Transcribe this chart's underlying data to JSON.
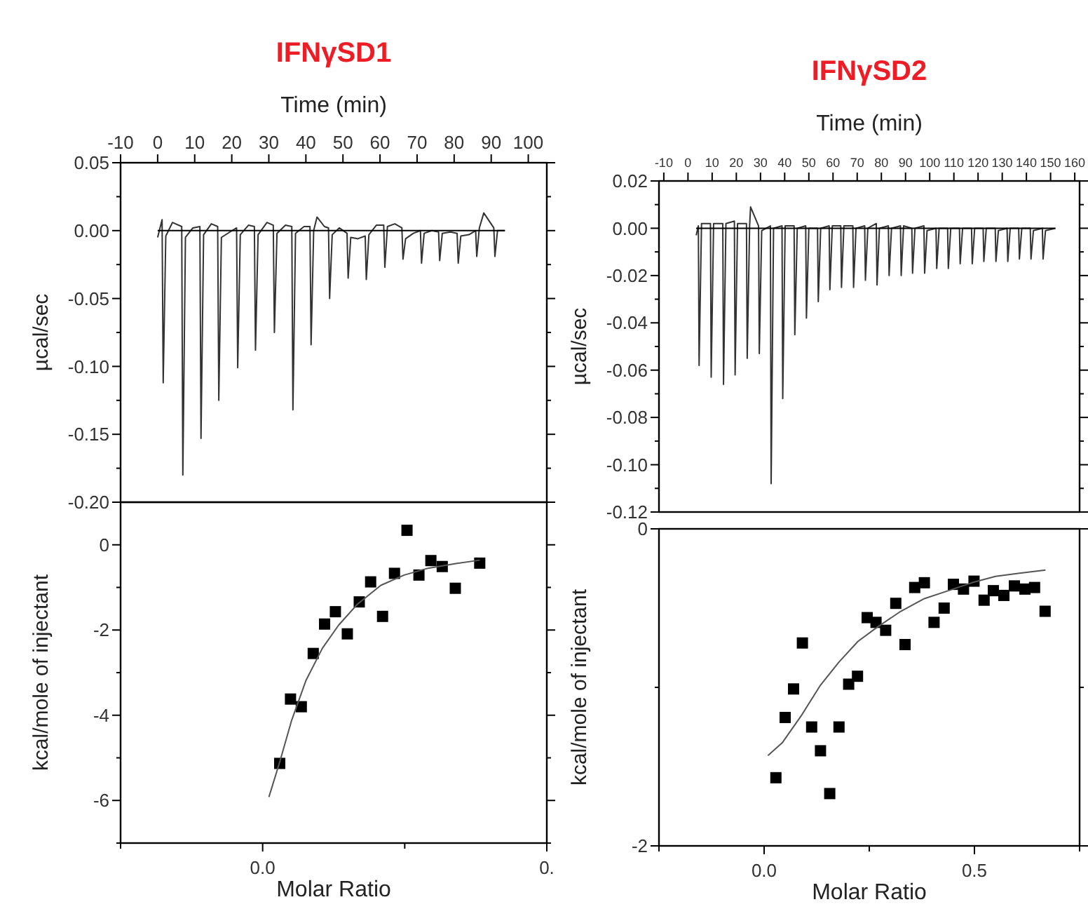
{
  "chart_data": [
    {
      "type": "line",
      "title": "IFNγSD1",
      "xlabel": "Time (min)",
      "ylabel": "µcal/sec",
      "xlim": [
        -10,
        105
      ],
      "xticks": [
        -10,
        0,
        10,
        20,
        30,
        40,
        50,
        60,
        70,
        80,
        90,
        100
      ],
      "ylim": [
        -0.2,
        0.05
      ],
      "yticks": [
        {
          "value": 0.05,
          "label": "0.05"
        },
        {
          "value": 0.025,
          "label": null
        },
        {
          "value": 0,
          "label": "0.00"
        },
        {
          "value": -0.025,
          "label": null
        },
        {
          "value": -0.05,
          "label": "-0.05"
        },
        {
          "value": -0.075,
          "label": null
        },
        {
          "value": -0.1,
          "label": "-0.10"
        },
        {
          "value": -0.125,
          "label": null
        },
        {
          "value": -0.15,
          "label": "-0.15"
        },
        {
          "value": -0.175,
          "label": null
        },
        {
          "value": -0.2,
          "label": "-0.20"
        }
      ],
      "series": [
        {
          "color": "#333333",
          "x": [
            0,
            1.2,
            1.5,
            2.2,
            4,
            6.5,
            6.8,
            7.5,
            9.5,
            11.4,
            11.7,
            12.4,
            14.5,
            16.2,
            16.5,
            17.2,
            19.5,
            21.3,
            21.6,
            22.3,
            24.5,
            26.1,
            26.4,
            27.1,
            29.5,
            31.2,
            31.5,
            32.2,
            34.5,
            36.2,
            36.5,
            37.2,
            39.5,
            41.1,
            41.4,
            42.1,
            43,
            45,
            46.1,
            46.4,
            47.1,
            49,
            51.1,
            51.4,
            52.1,
            54,
            56,
            56.3,
            57,
            59,
            61,
            61.3,
            62,
            64,
            65.9,
            66.2,
            66.9,
            69,
            70.9,
            71.2,
            71.9,
            74,
            75.8,
            76.1,
            76.8,
            79,
            80.8,
            81.1,
            81.8,
            84,
            85.8,
            86.1,
            86.8,
            88,
            90.7,
            91,
            91.7,
            93.7
          ],
          "values": [
            -0.005,
            0.008,
            -0.112,
            -0.004,
            0.006,
            0.003,
            -0.18,
            -0.005,
            0.002,
            0.003,
            -0.153,
            -0.003,
            0.005,
            0.003,
            -0.125,
            -0.005,
            -0.001,
            0.002,
            -0.101,
            -0.003,
            0.004,
            0.003,
            -0.088,
            -0.003,
            0.006,
            0.004,
            -0.075,
            -0.002,
            0.004,
            0.003,
            -0.132,
            -0.002,
            0.003,
            0.003,
            -0.084,
            0,
            0.01,
            0.003,
            0.002,
            -0.05,
            -0.003,
            0.002,
            -0.002,
            -0.035,
            -0.005,
            -0.006,
            -0.004,
            -0.036,
            -0.003,
            0.004,
            0.004,
            -0.027,
            0.003,
            0.005,
            0.002,
            -0.021,
            -0.006,
            -0.002,
            0,
            -0.024,
            -0.002,
            0,
            -0.001,
            -0.022,
            -0.002,
            -0.001,
            -0.002,
            -0.024,
            -0.004,
            -0.003,
            0,
            -0.019,
            0.002,
            0.013,
            0.002,
            -0.019,
            0,
            0
          ]
        },
        {
          "color": "#000000",
          "x": [
            0,
            93.7
          ],
          "values": [
            0,
            0
          ]
        }
      ]
    },
    {
      "type": "scatter",
      "xlabel": "Molar Ratio",
      "ylabel": "kcal/mole of injectant",
      "xlim": [
        -0.25,
        0.5
      ],
      "xticks": [
        {
          "value": -0.25,
          "label": null
        },
        {
          "value": 0,
          "label": "0.0"
        },
        {
          "value": 0.25,
          "label": null
        },
        {
          "value": 0.5,
          "label": "0."
        }
      ],
      "ylim": [
        -7,
        1
      ],
      "yticks": [
        {
          "value": 0,
          "label": "0"
        },
        {
          "value": -1,
          "label": null
        },
        {
          "value": -2,
          "label": "-2"
        },
        {
          "value": -3,
          "label": null
        },
        {
          "value": -4,
          "label": "-4"
        },
        {
          "value": -5,
          "label": null
        },
        {
          "value": -6,
          "label": "-6"
        },
        {
          "value": -7,
          "label": null
        }
      ],
      "series": [
        {
          "marker": "square",
          "color": "#000000",
          "x": [
            0.03,
            0.049,
            0.068,
            0.089,
            0.109,
            0.128,
            0.149,
            0.17,
            0.19,
            0.211,
            0.232,
            0.254,
            0.275,
            0.296,
            0.316,
            0.339,
            0.382
          ],
          "values": [
            -5.13,
            -3.62,
            -3.8,
            -2.55,
            -1.86,
            -1.57,
            -2.09,
            -1.34,
            -0.87,
            -1.68,
            -0.67,
            0.34,
            -0.71,
            -0.37,
            -0.51,
            -1.02,
            -0.43
          ]
        },
        {
          "type": "line",
          "color": "#555555",
          "x": [
            0.011,
            0.03,
            0.051,
            0.076,
            0.105,
            0.134,
            0.167,
            0.208,
            0.249,
            0.291,
            0.34,
            0.382
          ],
          "values": [
            -5.92,
            -5.1,
            -4.12,
            -3.19,
            -2.43,
            -1.88,
            -1.39,
            -0.95,
            -0.71,
            -0.55,
            -0.44,
            -0.36
          ]
        }
      ]
    },
    {
      "type": "line",
      "title": "IFNγSD2",
      "xlabel": "Time (min)",
      "ylabel": "µcal/sec",
      "xlim": [
        -12,
        162
      ],
      "xticks": [
        -10,
        0,
        10,
        20,
        30,
        40,
        50,
        60,
        70,
        80,
        90,
        100,
        110,
        120,
        130,
        140,
        150,
        160
      ],
      "ylim": [
        -0.12,
        0.02
      ],
      "yticks": [
        {
          "value": 0.02,
          "label": "0.02"
        },
        {
          "value": 0.01,
          "label": null
        },
        {
          "value": 0,
          "label": "0.00"
        },
        {
          "value": -0.01,
          "label": null
        },
        {
          "value": -0.02,
          "label": "-0.02"
        },
        {
          "value": -0.03,
          "label": null
        },
        {
          "value": -0.04,
          "label": "-0.04"
        },
        {
          "value": -0.05,
          "label": null
        },
        {
          "value": -0.06,
          "label": "-0.06"
        },
        {
          "value": -0.07,
          "label": null
        },
        {
          "value": -0.08,
          "label": "-0.08"
        },
        {
          "value": -0.09,
          "label": null
        },
        {
          "value": -0.1,
          "label": "-0.10"
        },
        {
          "value": -0.11,
          "label": null
        },
        {
          "value": -0.12,
          "label": "-0.12"
        }
      ],
      "series": [
        {
          "color": "#333333",
          "x": [
            3.4,
            4.3,
            4.6,
            5.6,
            9.3,
            9.6,
            10.6,
            14.4,
            14.7,
            15.7,
            19.2,
            19.5,
            20.5,
            24.2,
            24.5,
            25.5,
            25.9,
            29.2,
            29.5,
            30.5,
            34.1,
            34.4,
            35.4,
            38.9,
            39.2,
            40.2,
            43.9,
            44.2,
            45.2,
            48.7,
            49,
            50,
            53.6,
            53.9,
            54.9,
            58.4,
            58.7,
            59.7,
            63.2,
            63.5,
            64.5,
            68.2,
            68.5,
            69.5,
            73.1,
            73.4,
            74.4,
            77.9,
            78.2,
            79.2,
            82.9,
            83.2,
            84.2,
            87.9,
            88.2,
            89.2,
            92.6,
            92.9,
            93.9,
            97.6,
            97.9,
            98.9,
            102.6,
            102.9,
            103.9,
            107.4,
            107.7,
            108.7,
            112.3,
            112.6,
            113.6,
            117.3,
            117.6,
            118.6,
            122.1,
            122.4,
            123.4,
            127.1,
            127.4,
            128.4,
            132,
            132.3,
            133.3,
            136.8,
            137.1,
            138.1,
            141.6,
            141.9,
            142.9,
            146.6,
            146.9,
            147.9,
            152
          ],
          "values": [
            -0.003,
            0.001,
            -0.058,
            0.002,
            0.002,
            -0.063,
            0.002,
            0.002,
            -0.066,
            0.002,
            0.003,
            -0.062,
            0.002,
            0.002,
            -0.055,
            0.001,
            0.009,
            0.001,
            -0.053,
            -0.001,
            0.001,
            -0.108,
            0,
            0.001,
            -0.072,
            0.001,
            0.001,
            -0.045,
            0,
            0.001,
            -0.038,
            0,
            0,
            -0.031,
            0,
            0.001,
            -0.026,
            0.001,
            0.001,
            -0.025,
            0.001,
            0.001,
            -0.025,
            0,
            0.001,
            -0.022,
            0,
            0.002,
            -0.024,
            0,
            0.001,
            -0.02,
            0,
            0.001,
            -0.02,
            0.001,
            0,
            -0.019,
            0,
            0.001,
            -0.019,
            -0.001,
            0,
            -0.017,
            0,
            0,
            -0.017,
            0,
            0,
            -0.015,
            0,
            0,
            -0.015,
            0,
            0,
            -0.014,
            0,
            0,
            -0.014,
            -0.001,
            0,
            -0.014,
            0,
            0,
            -0.013,
            0,
            0,
            -0.013,
            -0.001,
            0,
            -0.013,
            -0.001,
            0
          ]
        },
        {
          "color": "#000000",
          "x": [
            3.4,
            152
          ],
          "values": [
            0,
            0
          ]
        }
      ]
    },
    {
      "type": "scatter",
      "xlabel": "Molar Ratio",
      "ylabel": "kcal/mole of injectant",
      "xlim": [
        -0.25,
        0.75
      ],
      "xticks": [
        {
          "value": -0.25,
          "label": null
        },
        {
          "value": 0,
          "label": "0.0"
        },
        {
          "value": 0.25,
          "label": null
        },
        {
          "value": 0.5,
          "label": "0.5"
        },
        {
          "value": 0.75,
          "label": null
        }
      ],
      "ylim": [
        -2,
        0
      ],
      "yticks": [
        -2,
        {
          "value": -1,
          "label": null
        },
        0
      ],
      "series": [
        {
          "marker": "square",
          "color": "#000000",
          "x": [
            0.028,
            0.05,
            0.07,
            0.091,
            0.113,
            0.134,
            0.156,
            0.178,
            0.201,
            0.222,
            0.245,
            0.266,
            0.289,
            0.313,
            0.335,
            0.358,
            0.381,
            0.404,
            0.428,
            0.45,
            0.474,
            0.499,
            0.523,
            0.545,
            0.57,
            0.595,
            0.62,
            0.643,
            0.668
          ],
          "values": [
            -1.57,
            -1.19,
            -1.01,
            -0.72,
            -1.25,
            -1.4,
            -1.67,
            -1.25,
            -0.98,
            -0.93,
            -0.56,
            -0.59,
            -0.64,
            -0.47,
            -0.73,
            -0.37,
            -0.34,
            -0.59,
            -0.5,
            -0.35,
            -0.38,
            -0.33,
            -0.45,
            -0.39,
            -0.42,
            -0.36,
            -0.38,
            -0.37,
            -0.52
          ]
        },
        {
          "type": "line",
          "color": "#555555",
          "x": [
            0.009,
            0.043,
            0.088,
            0.133,
            0.178,
            0.223,
            0.269,
            0.325,
            0.381,
            0.438,
            0.494,
            0.55,
            0.607,
            0.669
          ],
          "values": [
            -1.43,
            -1.35,
            -1.18,
            -0.99,
            -0.84,
            -0.71,
            -0.62,
            -0.52,
            -0.44,
            -0.39,
            -0.34,
            -0.3,
            -0.28,
            -0.26
          ]
        }
      ]
    }
  ]
}
